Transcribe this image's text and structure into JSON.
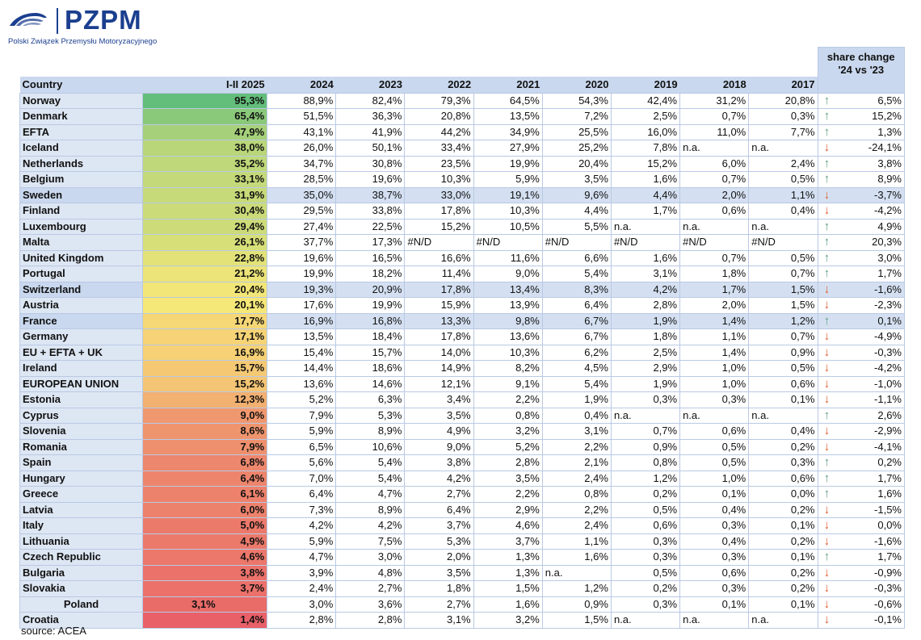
{
  "logo": {
    "text": "PZPM",
    "subtitle": "Polski Związek Przemysłu Motoryzacyjnego",
    "brand_color": "#1b3f8f",
    "icon": "car-silhouette-icon"
  },
  "table": {
    "share_change_header": [
      "share change",
      "'24 vs '23"
    ],
    "columns": [
      "Country",
      "I-II 2025",
      "2024",
      "2023",
      "2022",
      "2021",
      "2020",
      "2019",
      "2018",
      "2017"
    ],
    "arrow_colors": {
      "up": "#5d9e7f",
      "down": "#e05a2b"
    },
    "rows": [
      {
        "country": "Norway",
        "ytd": "95,3%",
        "ytd_share": 95.3,
        "years": [
          "88,9%",
          "82,4%",
          "79,3%",
          "64,5%",
          "54,3%",
          "42,4%",
          "31,2%",
          "20,8%"
        ],
        "trend": "up",
        "change": "6,5%"
      },
      {
        "country": "Denmark",
        "ytd": "65,4%",
        "ytd_share": 65.4,
        "years": [
          "51,5%",
          "36,3%",
          "20,8%",
          "13,5%",
          "7,2%",
          "2,5%",
          "0,7%",
          "0,3%"
        ],
        "trend": "up",
        "change": "15,2%"
      },
      {
        "country": "EFTA",
        "ytd": "47,9%",
        "ytd_share": 47.9,
        "years": [
          "43,1%",
          "41,9%",
          "44,2%",
          "34,9%",
          "25,5%",
          "16,0%",
          "11,0%",
          "7,7%"
        ],
        "trend": "up",
        "change": "1,3%"
      },
      {
        "country": "Iceland",
        "ytd": "38,0%",
        "ytd_share": 38.0,
        "years": [
          "26,0%",
          "50,1%",
          "33,4%",
          "27,9%",
          "25,2%",
          "7,8%",
          "n.a.",
          "n.a."
        ],
        "trend": "down",
        "change": "-24,1%"
      },
      {
        "country": "Netherlands",
        "ytd": "35,2%",
        "ytd_share": 35.2,
        "years": [
          "34,7%",
          "30,8%",
          "23,5%",
          "19,9%",
          "20,4%",
          "15,2%",
          "6,0%",
          "2,4%"
        ],
        "trend": "up",
        "change": "3,8%"
      },
      {
        "country": "Belgium",
        "ytd": "33,1%",
        "ytd_share": 33.1,
        "years": [
          "28,5%",
          "19,6%",
          "10,3%",
          "5,9%",
          "3,5%",
          "1,6%",
          "0,7%",
          "0,5%"
        ],
        "trend": "up",
        "change": "8,9%"
      },
      {
        "country": "Sweden",
        "ytd": "31,9%",
        "ytd_share": 31.9,
        "highlight": true,
        "years": [
          "35,0%",
          "38,7%",
          "33,0%",
          "19,1%",
          "9,6%",
          "4,4%",
          "2,0%",
          "1,1%"
        ],
        "trend": "down",
        "change": "-3,7%"
      },
      {
        "country": "Finland",
        "ytd": "30,4%",
        "ytd_share": 30.4,
        "years": [
          "29,5%",
          "33,8%",
          "17,8%",
          "10,3%",
          "4,4%",
          "1,7%",
          "0,6%",
          "0,4%"
        ],
        "trend": "down",
        "change": "-4,2%"
      },
      {
        "country": "Luxembourg",
        "ytd": "29,4%",
        "ytd_share": 29.4,
        "years": [
          "27,4%",
          "22,5%",
          "15,2%",
          "10,5%",
          "5,5%",
          "n.a.",
          "n.a.",
          "n.a."
        ],
        "trend": "up",
        "change": "4,9%"
      },
      {
        "country": "Malta",
        "ytd": "26,1%",
        "ytd_share": 26.1,
        "years": [
          "37,7%",
          "17,3%",
          "#N/D",
          "#N/D",
          "#N/D",
          "#N/D",
          "#N/D",
          "#N/D"
        ],
        "trend": "up",
        "change": "20,3%"
      },
      {
        "country": "United Kingdom",
        "ytd": "22,8%",
        "ytd_share": 22.8,
        "years": [
          "19,6%",
          "16,5%",
          "16,6%",
          "11,6%",
          "6,6%",
          "1,6%",
          "0,7%",
          "0,5%"
        ],
        "trend": "up",
        "change": "3,0%"
      },
      {
        "country": "Portugal",
        "ytd": "21,2%",
        "ytd_share": 21.2,
        "years": [
          "19,9%",
          "18,2%",
          "11,4%",
          "9,0%",
          "5,4%",
          "3,1%",
          "1,8%",
          "0,7%"
        ],
        "trend": "up",
        "change": "1,7%"
      },
      {
        "country": "Switzerland",
        "ytd": "20,4%",
        "ytd_share": 20.4,
        "highlight": true,
        "years": [
          "19,3%",
          "20,9%",
          "17,8%",
          "13,4%",
          "8,3%",
          "4,2%",
          "1,7%",
          "1,5%"
        ],
        "trend": "down",
        "change": "-1,6%"
      },
      {
        "country": "Austria",
        "ytd": "20,1%",
        "ytd_share": 20.1,
        "years": [
          "17,6%",
          "19,9%",
          "15,9%",
          "13,9%",
          "6,4%",
          "2,8%",
          "2,0%",
          "1,5%"
        ],
        "trend": "down",
        "change": "-2,3%"
      },
      {
        "country": "France",
        "ytd": "17,7%",
        "ytd_share": 17.7,
        "highlight": true,
        "years": [
          "16,9%",
          "16,8%",
          "13,3%",
          "9,8%",
          "6,7%",
          "1,9%",
          "1,4%",
          "1,2%"
        ],
        "trend": "up",
        "change": "0,1%"
      },
      {
        "country": "Germany",
        "ytd": "17,1%",
        "ytd_share": 17.1,
        "years": [
          "13,5%",
          "18,4%",
          "17,8%",
          "13,6%",
          "6,7%",
          "1,8%",
          "1,1%",
          "0,7%"
        ],
        "trend": "down",
        "change": "-4,9%"
      },
      {
        "country": "EU + EFTA + UK",
        "ytd": "16,9%",
        "ytd_share": 16.9,
        "years": [
          "15,4%",
          "15,7%",
          "14,0%",
          "10,3%",
          "6,2%",
          "2,5%",
          "1,4%",
          "0,9%"
        ],
        "trend": "down",
        "change": "-0,3%"
      },
      {
        "country": "Ireland",
        "ytd": "15,7%",
        "ytd_share": 15.7,
        "years": [
          "14,4%",
          "18,6%",
          "14,9%",
          "8,2%",
          "4,5%",
          "2,9%",
          "1,0%",
          "0,5%"
        ],
        "trend": "down",
        "change": "-4,2%"
      },
      {
        "country": "EUROPEAN UNION",
        "ytd": "15,2%",
        "ytd_share": 15.2,
        "years": [
          "13,6%",
          "14,6%",
          "12,1%",
          "9,1%",
          "5,4%",
          "1,9%",
          "1,0%",
          "0,6%"
        ],
        "trend": "down",
        "change": "-1,0%"
      },
      {
        "country": "Estonia",
        "ytd": "12,3%",
        "ytd_share": 12.3,
        "years": [
          "5,2%",
          "6,3%",
          "3,4%",
          "2,2%",
          "1,9%",
          "0,3%",
          "0,3%",
          "0,1%"
        ],
        "trend": "down",
        "change": "-1,1%"
      },
      {
        "country": "Cyprus",
        "ytd": "9,0%",
        "ytd_share": 9.0,
        "years": [
          "7,9%",
          "5,3%",
          "3,5%",
          "0,8%",
          "0,4%",
          "n.a.",
          "n.a.",
          "n.a."
        ],
        "trend": "up",
        "change": "2,6%"
      },
      {
        "country": "Slovenia",
        "ytd": "8,6%",
        "ytd_share": 8.6,
        "years": [
          "5,9%",
          "8,9%",
          "4,9%",
          "3,2%",
          "3,1%",
          "0,7%",
          "0,6%",
          "0,4%"
        ],
        "trend": "down",
        "change": "-2,9%"
      },
      {
        "country": "Romania",
        "ytd": "7,9%",
        "ytd_share": 7.9,
        "years": [
          "6,5%",
          "10,6%",
          "9,0%",
          "5,2%",
          "2,2%",
          "0,9%",
          "0,5%",
          "0,2%"
        ],
        "trend": "down",
        "change": "-4,1%"
      },
      {
        "country": "Spain",
        "ytd": "6,8%",
        "ytd_share": 6.8,
        "years": [
          "5,6%",
          "5,4%",
          "3,8%",
          "2,8%",
          "2,1%",
          "0,8%",
          "0,5%",
          "0,3%"
        ],
        "trend": "up",
        "change": "0,2%"
      },
      {
        "country": "Hungary",
        "ytd": "6,4%",
        "ytd_share": 6.4,
        "years": [
          "7,0%",
          "5,4%",
          "4,2%",
          "3,5%",
          "2,4%",
          "1,2%",
          "1,0%",
          "0,6%"
        ],
        "trend": "up",
        "change": "1,7%"
      },
      {
        "country": "Greece",
        "ytd": "6,1%",
        "ytd_share": 6.1,
        "years": [
          "6,4%",
          "4,7%",
          "2,7%",
          "2,2%",
          "0,8%",
          "0,2%",
          "0,1%",
          "0,0%"
        ],
        "trend": "up",
        "change": "1,6%"
      },
      {
        "country": "Latvia",
        "ytd": "6,0%",
        "ytd_share": 6.0,
        "years": [
          "7,3%",
          "8,9%",
          "6,4%",
          "2,9%",
          "2,2%",
          "0,5%",
          "0,4%",
          "0,2%"
        ],
        "trend": "down",
        "change": "-1,5%"
      },
      {
        "country": "Italy",
        "ytd": "5,0%",
        "ytd_share": 5.0,
        "years": [
          "4,2%",
          "4,2%",
          "3,7%",
          "4,6%",
          "2,4%",
          "0,6%",
          "0,3%",
          "0,1%"
        ],
        "trend": "down",
        "change": "0,0%"
      },
      {
        "country": "Lithuania",
        "ytd": "4,9%",
        "ytd_share": 4.9,
        "years": [
          "5,9%",
          "7,5%",
          "5,3%",
          "3,7%",
          "1,1%",
          "0,3%",
          "0,4%",
          "0,2%"
        ],
        "trend": "down",
        "change": "-1,6%"
      },
      {
        "country": "Czech Republic",
        "ytd": "4,6%",
        "ytd_share": 4.6,
        "years": [
          "4,7%",
          "3,0%",
          "2,0%",
          "1,3%",
          "1,6%",
          "0,3%",
          "0,3%",
          "0,1%"
        ],
        "trend": "up",
        "change": "1,7%"
      },
      {
        "country": "Bulgaria",
        "ytd": "3,8%",
        "ytd_share": 3.8,
        "years": [
          "3,9%",
          "4,8%",
          "3,5%",
          "1,3%",
          "n.a.",
          "0,5%",
          "0,6%",
          "0,2%"
        ],
        "trend": "down",
        "change": "-0,9%"
      },
      {
        "country": "Slovakia",
        "ytd": "3,7%",
        "ytd_share": 3.7,
        "years": [
          "2,4%",
          "2,7%",
          "1,8%",
          "1,5%",
          "1,2%",
          "0,2%",
          "0,3%",
          "0,2%"
        ],
        "trend": "down",
        "change": "-0,3%"
      },
      {
        "country": "Poland",
        "ytd": "3,1%",
        "ytd_share": 3.1,
        "center": true,
        "years": [
          "3,0%",
          "3,6%",
          "2,7%",
          "1,6%",
          "0,9%",
          "0,3%",
          "0,1%",
          "0,1%"
        ],
        "trend": "down",
        "change": "-0,6%"
      },
      {
        "country": "Croatia",
        "ytd": "1,4%",
        "ytd_share": 1.4,
        "years": [
          "2,8%",
          "2,8%",
          "3,1%",
          "3,2%",
          "1,5%",
          "n.a.",
          "n.a.",
          "n.a."
        ],
        "trend": "down",
        "change": "-0,1%"
      }
    ]
  },
  "source": "source: ACEA"
}
